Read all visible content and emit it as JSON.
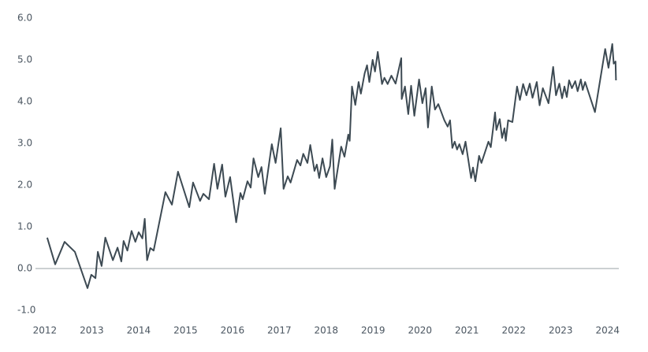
{
  "chart_data": {
    "type": "line",
    "x": [
      2012.05,
      2012.22,
      2012.42,
      2012.64,
      2012.91,
      2012.99,
      2013.08,
      2013.13,
      2013.21,
      2013.29,
      2013.45,
      2013.55,
      2013.63,
      2013.68,
      2013.76,
      2013.85,
      2013.93,
      2014.0,
      2014.08,
      2014.13,
      2014.18,
      2014.25,
      2014.32,
      2014.57,
      2014.71,
      2014.84,
      2015.08,
      2015.16,
      2015.31,
      2015.38,
      2015.5,
      2015.61,
      2015.68,
      2015.78,
      2015.85,
      2015.95,
      2016.08,
      2016.17,
      2016.22,
      2016.32,
      2016.39,
      2016.45,
      2016.55,
      2016.62,
      2016.69,
      2016.84,
      2016.92,
      2017.03,
      2017.09,
      2017.18,
      2017.24,
      2017.38,
      2017.45,
      2017.51,
      2017.6,
      2017.66,
      2017.75,
      2017.8,
      2017.85,
      2017.92,
      2018.0,
      2018.08,
      2018.13,
      2018.18,
      2018.32,
      2018.39,
      2018.47,
      2018.5,
      2018.55,
      2018.62,
      2018.69,
      2018.74,
      2018.82,
      2018.87,
      2018.92,
      2018.99,
      2019.04,
      2019.1,
      2019.19,
      2019.24,
      2019.31,
      2019.39,
      2019.48,
      2019.6,
      2019.61,
      2019.68,
      2019.75,
      2019.81,
      2019.88,
      2019.98,
      2020.05,
      2020.12,
      2020.17,
      2020.25,
      2020.32,
      2020.39,
      2020.52,
      2020.59,
      2020.64,
      2020.69,
      2020.74,
      2020.79,
      2020.84,
      2020.91,
      2020.97,
      2021.09,
      2021.13,
      2021.18,
      2021.26,
      2021.31,
      2021.46,
      2021.51,
      2021.6,
      2021.63,
      2021.7,
      2021.75,
      2021.8,
      2021.83,
      2021.88,
      2021.97,
      2022.07,
      2022.13,
      2022.2,
      2022.27,
      2022.34,
      2022.4,
      2022.49,
      2022.55,
      2022.62,
      2022.74,
      2022.84,
      2022.9,
      2022.97,
      2023.03,
      2023.08,
      2023.13,
      2023.18,
      2023.24,
      2023.31,
      2023.36,
      2023.43,
      2023.47,
      2023.52,
      2023.73,
      2023.95,
      2024.02,
      2024.1,
      2024.13,
      2024.17,
      2024.18
    ],
    "series": [
      {
        "color": "#3d4a53",
        "values": [
          0.74,
          0.1,
          0.64,
          0.4,
          -0.47,
          -0.15,
          -0.23,
          0.4,
          0.06,
          0.74,
          0.2,
          0.5,
          0.17,
          0.66,
          0.43,
          0.9,
          0.64,
          0.87,
          0.72,
          1.19,
          0.2,
          0.49,
          0.43,
          1.83,
          1.53,
          2.32,
          1.47,
          2.06,
          1.62,
          1.79,
          1.66,
          2.51,
          1.91,
          2.49,
          1.72,
          2.19,
          1.11,
          1.81,
          1.66,
          2.09,
          1.94,
          2.64,
          2.19,
          2.43,
          1.79,
          2.98,
          2.53,
          3.36,
          1.91,
          2.21,
          2.06,
          2.6,
          2.47,
          2.75,
          2.53,
          2.96,
          2.34,
          2.49,
          2.17,
          2.64,
          2.19,
          2.45,
          3.09,
          1.91,
          2.92,
          2.68,
          3.21,
          3.06,
          4.36,
          3.92,
          4.47,
          4.19,
          4.68,
          4.87,
          4.47,
          5.0,
          4.72,
          5.19,
          4.42,
          4.57,
          4.42,
          4.62,
          4.43,
          5.04,
          4.06,
          4.36,
          3.7,
          4.38,
          3.66,
          4.53,
          3.96,
          4.32,
          3.38,
          4.36,
          3.81,
          3.94,
          3.55,
          3.4,
          3.55,
          2.89,
          3.04,
          2.85,
          2.98,
          2.74,
          3.04,
          2.17,
          2.42,
          2.09,
          2.7,
          2.53,
          3.04,
          2.91,
          3.74,
          3.32,
          3.58,
          3.13,
          3.36,
          3.06,
          3.55,
          3.51,
          4.36,
          4.04,
          4.42,
          4.15,
          4.43,
          4.09,
          4.47,
          3.91,
          4.32,
          3.96,
          4.83,
          4.15,
          4.43,
          4.08,
          4.36,
          4.11,
          4.51,
          4.32,
          4.49,
          4.25,
          4.53,
          4.28,
          4.47,
          3.75,
          5.26,
          4.81,
          5.38,
          4.91,
          4.96,
          4.51
        ]
      }
    ],
    "xlim": [
      2011.8,
      2024.24
    ],
    "xticks": [
      2012,
      2013,
      2014,
      2015,
      2016,
      2017,
      2018,
      2019,
      2020,
      2021,
      2022,
      2023,
      2024
    ],
    "ylim": [
      -1,
      6
    ],
    "yticks": [
      {
        "value": -1,
        "label": "-1.0"
      },
      {
        "value": 0,
        "label": "0.0"
      },
      {
        "value": 1,
        "label": "1.0"
      },
      {
        "value": 2,
        "label": "2.0"
      },
      {
        "value": 3,
        "label": "3.0"
      },
      {
        "value": 4,
        "label": "4.0"
      },
      {
        "value": 5,
        "label": "5.0"
      },
      {
        "value": 6,
        "label": "6.0"
      }
    ],
    "zero_line": true
  }
}
